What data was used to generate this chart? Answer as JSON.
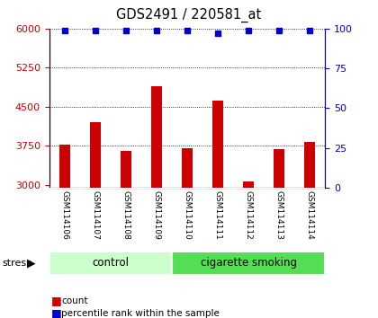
{
  "title": "GDS2491 / 220581_at",
  "samples": [
    "GSM114106",
    "GSM114107",
    "GSM114108",
    "GSM114109",
    "GSM114110",
    "GSM114111",
    "GSM114112",
    "GSM114113",
    "GSM114114"
  ],
  "counts": [
    3780,
    4200,
    3650,
    4900,
    3700,
    4620,
    3070,
    3680,
    3820
  ],
  "percentile_ranks": [
    99,
    99,
    99,
    99,
    99,
    97,
    99,
    99,
    99
  ],
  "ylim_left": [
    2950,
    6000
  ],
  "ylim_right": [
    0,
    100
  ],
  "yticks_left": [
    3000,
    3750,
    4500,
    5250,
    6000
  ],
  "yticks_right": [
    0,
    25,
    50,
    75,
    100
  ],
  "groups": [
    {
      "label": "control",
      "indices": [
        0,
        1,
        2,
        3
      ],
      "color": "#ccffcc"
    },
    {
      "label": "cigarette smoking",
      "indices": [
        4,
        5,
        6,
        7,
        8
      ],
      "color": "#55dd55"
    }
  ],
  "bar_color": "#cc0000",
  "dot_color": "#0000cc",
  "grid_color": "#000000",
  "bg_color": "#bbbbbb",
  "stress_label": "stress",
  "left_tick_color": "#cc0000",
  "right_tick_color": "#0000cc",
  "dotted_yticks": [
    3750,
    4500,
    5250,
    6000
  ],
  "bar_width": 0.35,
  "dot_size": 4
}
